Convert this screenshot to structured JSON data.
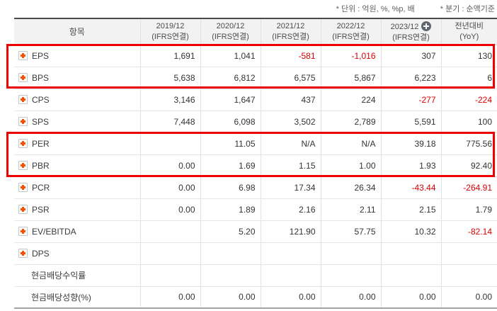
{
  "notes": {
    "unit": "* 단위 : 억원, %, %p, 배",
    "basis": "* 분기 : 순액기준"
  },
  "table": {
    "item_header": "항목",
    "columns": [
      {
        "period": "2019/12",
        "standard": "(IFRS연결)",
        "add_icon": false
      },
      {
        "period": "2020/12",
        "standard": "(IFRS연결)",
        "add_icon": false
      },
      {
        "period": "2021/12",
        "standard": "(IFRS연결)",
        "add_icon": false
      },
      {
        "period": "2022/12",
        "standard": "(IFRS연결)",
        "add_icon": false
      },
      {
        "period": "2023/12",
        "standard": "(IFRS연결)",
        "add_icon": true
      },
      {
        "period": "전년대비",
        "standard": "(YoY)",
        "add_icon": false
      }
    ],
    "rows": [
      {
        "label": "EPS",
        "expand_icon": true,
        "values": [
          "1,691",
          "1,041",
          "-581",
          "-1,016",
          "307",
          "130"
        ]
      },
      {
        "label": "BPS",
        "expand_icon": true,
        "values": [
          "5,638",
          "6,812",
          "6,575",
          "5,867",
          "6,223",
          "6"
        ]
      },
      {
        "label": "CPS",
        "expand_icon": true,
        "values": [
          "3,146",
          "1,647",
          "437",
          "224",
          "-277",
          "-224"
        ]
      },
      {
        "label": "SPS",
        "expand_icon": true,
        "values": [
          "7,448",
          "6,098",
          "3,502",
          "2,789",
          "5,591",
          "100"
        ]
      },
      {
        "label": "PER",
        "expand_icon": true,
        "values": [
          "",
          "11.05",
          "N/A",
          "N/A",
          "39.18",
          "775.56"
        ]
      },
      {
        "label": "PBR",
        "expand_icon": true,
        "values": [
          "0.00",
          "1.69",
          "1.15",
          "1.00",
          "1.93",
          "92.40"
        ]
      },
      {
        "label": "PCR",
        "expand_icon": true,
        "values": [
          "0.00",
          "6.98",
          "17.34",
          "26.34",
          "-43.44",
          "-264.91"
        ]
      },
      {
        "label": "PSR",
        "expand_icon": true,
        "values": [
          "0.00",
          "1.89",
          "2.16",
          "2.11",
          "2.15",
          "1.79"
        ]
      },
      {
        "label": "EV/EBITDA",
        "expand_icon": true,
        "values": [
          "",
          "5.20",
          "121.90",
          "57.75",
          "10.32",
          "-82.14"
        ]
      },
      {
        "label": "DPS",
        "expand_icon": true,
        "values": [
          "",
          "",
          "",
          "",
          "",
          ""
        ]
      },
      {
        "label": "현금배당수익률",
        "expand_icon": false,
        "values": [
          "",
          "",
          "",
          "",
          "",
          ""
        ]
      },
      {
        "label": "현금배당성향(%)",
        "expand_icon": false,
        "values": [
          "0.00",
          "0.00",
          "0.00",
          "0.00",
          "0.00",
          "0.00"
        ]
      }
    ]
  },
  "highlights": [
    {
      "name": "eps-bps",
      "rows": [
        "EPS",
        "BPS"
      ]
    },
    {
      "name": "per-pbr",
      "rows": [
        "PER",
        "PBR"
      ]
    }
  ],
  "colors": {
    "highlight_box": "#ee0000",
    "negative_value": "#d80000",
    "expand_icon_plus": "#f75000",
    "add_icon_circle": "#5f6870"
  }
}
